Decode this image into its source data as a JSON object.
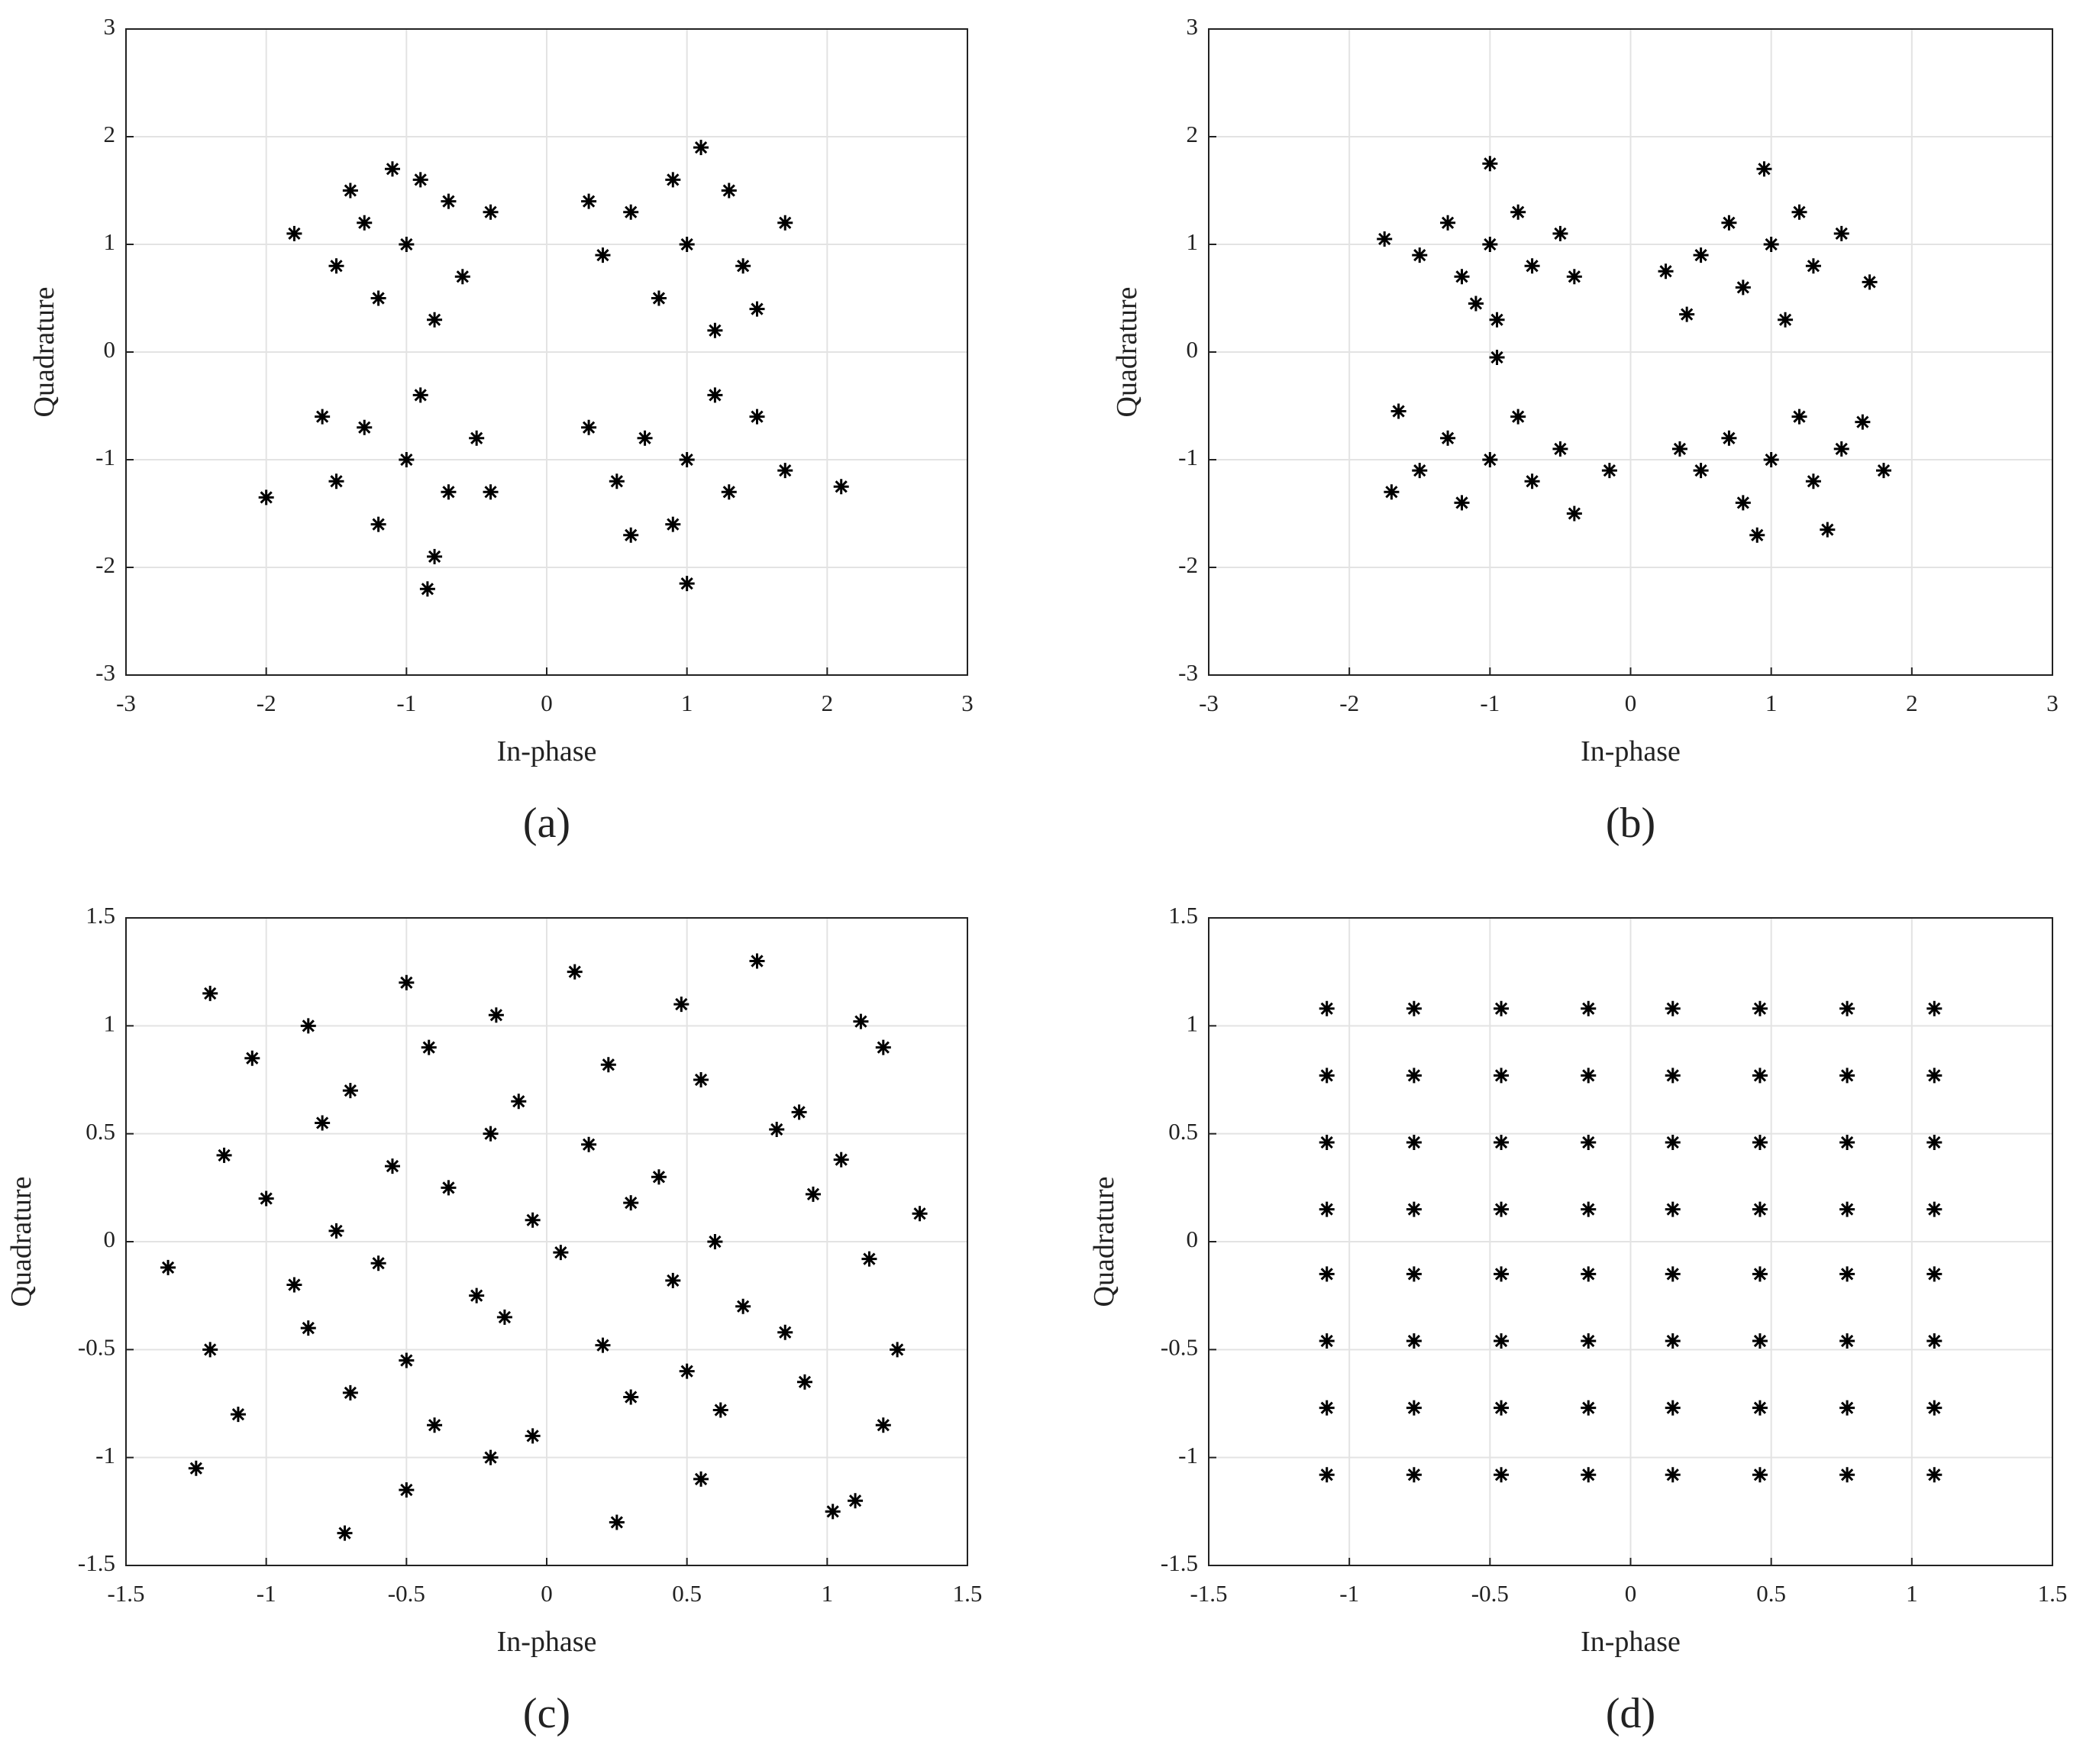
{
  "chart_data": [
    {
      "type": "scatter",
      "caption": "(a)",
      "xlabel": "In-phase",
      "ylabel": "Quadrature",
      "color": "#000000",
      "grid": true,
      "xlim": [
        -3,
        3
      ],
      "ylim": [
        -3,
        3
      ],
      "xticks": [
        -3,
        -2,
        -1,
        0,
        1,
        2,
        3
      ],
      "yticks": [
        -3,
        -2,
        -1,
        0,
        1,
        2,
        3
      ],
      "x": [
        -1.3,
        -0.7,
        -1.0,
        -1.5,
        -0.6,
        -1.2,
        -0.9,
        -1.8,
        -0.4,
        -1.1,
        -0.8,
        -1.4,
        1.0,
        0.6,
        1.4,
        0.8,
        1.3,
        0.4,
        1.1,
        1.7,
        0.9,
        1.5,
        0.3,
        1.2,
        -1.0,
        -1.3,
        -0.7,
        -1.5,
        -0.5,
        -1.2,
        -0.9,
        -2.0,
        -0.8,
        -1.6,
        -0.4,
        -0.85,
        1.0,
        0.7,
        1.3,
        0.5,
        1.5,
        0.9,
        1.2,
        2.1,
        0.3,
        1.7,
        1.0,
        0.6
      ],
      "y": [
        1.2,
        1.4,
        1.0,
        0.8,
        0.7,
        0.5,
        1.6,
        1.1,
        1.3,
        1.7,
        0.3,
        1.5,
        1.0,
        1.3,
        0.8,
        0.5,
        1.5,
        0.9,
        1.9,
        1.2,
        1.6,
        0.4,
        1.4,
        0.2,
        -1.0,
        -0.7,
        -1.3,
        -1.2,
        -0.8,
        -1.6,
        -0.4,
        -1.35,
        -1.9,
        -0.6,
        -1.3,
        -2.2,
        -1.0,
        -0.8,
        -1.3,
        -1.2,
        -0.6,
        -1.6,
        -0.4,
        -1.25,
        -0.7,
        -1.1,
        -2.15,
        -1.7
      ]
    },
    {
      "type": "scatter",
      "caption": "(b)",
      "xlabel": "In-phase",
      "ylabel": "Quadrature",
      "color": "#000000",
      "grid": true,
      "xlim": [
        -3,
        3
      ],
      "ylim": [
        -3,
        3
      ],
      "xticks": [
        -3,
        -2,
        -1,
        0,
        1,
        2,
        3
      ],
      "yticks": [
        -3,
        -2,
        -1,
        0,
        1,
        2,
        3
      ],
      "x": [
        -1.0,
        -1.3,
        -0.7,
        -1.2,
        -0.8,
        -1.5,
        -0.5,
        -1.0,
        -1.75,
        -0.95,
        -0.4,
        -1.1,
        1.0,
        0.7,
        1.3,
        0.8,
        1.2,
        0.5,
        1.5,
        0.95,
        0.25,
        1.7,
        0.4,
        1.1,
        -1.0,
        -1.3,
        -0.7,
        -1.2,
        -0.8,
        -1.5,
        -0.5,
        -0.95,
        -1.65,
        -0.15,
        -1.7,
        -0.4,
        1.0,
        0.7,
        1.3,
        0.8,
        1.2,
        0.5,
        1.5,
        1.8,
        1.65,
        0.35,
        1.4,
        0.9
      ],
      "y": [
        1.0,
        1.2,
        0.8,
        0.7,
        1.3,
        0.9,
        1.1,
        1.75,
        1.05,
        0.3,
        0.7,
        0.45,
        1.0,
        1.2,
        0.8,
        0.6,
        1.3,
        0.9,
        1.1,
        1.7,
        0.75,
        0.65,
        0.35,
        0.3,
        -1.0,
        -0.8,
        -1.2,
        -1.4,
        -0.6,
        -1.1,
        -0.9,
        -0.05,
        -0.55,
        -1.1,
        -1.3,
        -1.5,
        -1.0,
        -0.8,
        -1.2,
        -1.4,
        -0.6,
        -1.1,
        -0.9,
        -1.1,
        -0.65,
        -0.9,
        -1.65,
        -1.7
      ]
    },
    {
      "type": "scatter",
      "caption": "(c)",
      "xlabel": "In-phase",
      "ylabel": "Quadrature",
      "color": "#000000",
      "grid": true,
      "xlim": [
        -1.5,
        1.5
      ],
      "ylim": [
        -1.5,
        1.5
      ],
      "xticks": [
        -1.5,
        -1,
        -0.5,
        0,
        0.5,
        1,
        1.5
      ],
      "yticks": [
        -1.5,
        -1,
        -0.5,
        0,
        0.5,
        1,
        1.5
      ],
      "x": [
        -1.2,
        -0.85,
        -0.5,
        -0.18,
        0.1,
        0.48,
        0.75,
        1.12,
        -1.05,
        -0.7,
        -0.42,
        -0.1,
        0.22,
        0.55,
        0.9,
        1.2,
        -1.15,
        -0.8,
        -0.55,
        -0.2,
        0.15,
        0.4,
        0.82,
        1.05,
        -1.0,
        -0.75,
        -0.35,
        -0.05,
        0.3,
        0.6,
        0.95,
        1.33,
        -1.35,
        -0.9,
        -0.6,
        -0.25,
        0.05,
        0.45,
        0.7,
        1.15,
        -1.2,
        -0.85,
        -0.5,
        -0.15,
        0.2,
        0.5,
        0.85,
        1.25,
        -1.1,
        -0.7,
        -0.4,
        -0.05,
        0.3,
        0.62,
        0.92,
        1.2,
        -1.25,
        -0.72,
        -0.5,
        -0.2,
        0.25,
        0.55,
        1.02,
        1.1
      ],
      "y": [
        1.15,
        1.0,
        1.2,
        1.05,
        1.25,
        1.1,
        1.3,
        1.02,
        0.85,
        0.7,
        0.9,
        0.65,
        0.82,
        0.75,
        0.6,
        0.9,
        0.4,
        0.55,
        0.35,
        0.5,
        0.45,
        0.3,
        0.52,
        0.38,
        0.2,
        0.05,
        0.25,
        0.1,
        0.18,
        0.0,
        0.22,
        0.13,
        -0.12,
        -0.2,
        -0.1,
        -0.25,
        -0.05,
        -0.18,
        -0.3,
        -0.08,
        -0.5,
        -0.4,
        -0.55,
        -0.35,
        -0.48,
        -0.6,
        -0.42,
        -0.5,
        -0.8,
        -0.7,
        -0.85,
        -0.9,
        -0.72,
        -0.78,
        -0.65,
        -0.85,
        -1.05,
        -1.35,
        -1.15,
        -1.0,
        -1.3,
        -1.1,
        -1.25,
        -1.2
      ]
    },
    {
      "type": "scatter",
      "caption": "(d)",
      "xlabel": "In-phase",
      "ylabel": "Quadrature",
      "color": "#000000",
      "grid": true,
      "xlim": [
        -1.5,
        1.5
      ],
      "ylim": [
        -1.5,
        1.5
      ],
      "xticks": [
        -1.5,
        -1,
        -0.5,
        0,
        0.5,
        1,
        1.5
      ],
      "yticks": [
        -1.5,
        -1,
        -0.5,
        0,
        0.5,
        1,
        1.5
      ],
      "x": [
        -1.08,
        -0.77,
        -0.46,
        -0.15,
        0.15,
        0.46,
        0.77,
        1.08,
        -1.08,
        -0.77,
        -0.46,
        -0.15,
        0.15,
        0.46,
        0.77,
        1.08,
        -1.08,
        -0.77,
        -0.46,
        -0.15,
        0.15,
        0.46,
        0.77,
        1.08,
        -1.08,
        -0.77,
        -0.46,
        -0.15,
        0.15,
        0.46,
        0.77,
        1.08,
        -1.08,
        -0.77,
        -0.46,
        -0.15,
        0.15,
        0.46,
        0.77,
        1.08,
        -1.08,
        -0.77,
        -0.46,
        -0.15,
        0.15,
        0.46,
        0.77,
        1.08,
        -1.08,
        -0.77,
        -0.46,
        -0.15,
        0.15,
        0.46,
        0.77,
        1.08,
        -1.08,
        -0.77,
        -0.46,
        -0.15,
        0.15,
        0.46,
        0.77,
        1.08
      ],
      "y": [
        1.08,
        1.08,
        1.08,
        1.08,
        1.08,
        1.08,
        1.08,
        1.08,
        0.77,
        0.77,
        0.77,
        0.77,
        0.77,
        0.77,
        0.77,
        0.77,
        0.46,
        0.46,
        0.46,
        0.46,
        0.46,
        0.46,
        0.46,
        0.46,
        0.15,
        0.15,
        0.15,
        0.15,
        0.15,
        0.15,
        0.15,
        0.15,
        -0.15,
        -0.15,
        -0.15,
        -0.15,
        -0.15,
        -0.15,
        -0.15,
        -0.15,
        -0.46,
        -0.46,
        -0.46,
        -0.46,
        -0.46,
        -0.46,
        -0.46,
        -0.46,
        -0.77,
        -0.77,
        -0.77,
        -0.77,
        -0.77,
        -0.77,
        -0.77,
        -0.77,
        -1.08,
        -1.08,
        -1.08,
        -1.08,
        -1.08,
        -1.08,
        -1.08,
        -1.08
      ]
    }
  ]
}
